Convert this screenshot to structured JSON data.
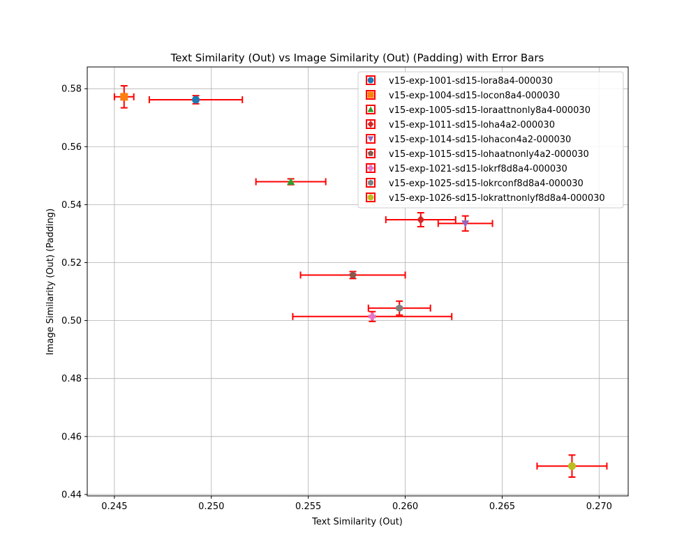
{
  "chart_data": {
    "type": "scatter",
    "title": "Text Similarity (Out) vs Image Similarity (Out) (Padding) with Error Bars",
    "xlabel": "Text Similarity (Out)",
    "ylabel": "Image Similarity (Out) (Padding)",
    "xlim": [
      0.2436,
      0.2715
    ],
    "ylim": [
      0.4395,
      0.5875
    ],
    "x_ticks": [
      "0.245",
      "0.250",
      "0.255",
      "0.260",
      "0.265",
      "0.270"
    ],
    "y_ticks": [
      "0.44",
      "0.46",
      "0.48",
      "0.50",
      "0.52",
      "0.54",
      "0.56",
      "0.58"
    ],
    "grid": true,
    "legend_position": "top-right",
    "error_bar_color": "#ff0000",
    "series": [
      {
        "name": "v15-exp-1001-sd15-lora8a4-000030",
        "marker": "circle",
        "color": "#1f77b4",
        "x": 0.2492,
        "y": 0.5762,
        "xerr": 0.0024,
        "yerr": 0.0014
      },
      {
        "name": "v15-exp-1004-sd15-locon8a4-000030",
        "marker": "square",
        "color": "#ff7f0e",
        "x": 0.2455,
        "y": 0.5772,
        "xerr": 0.0005,
        "yerr": 0.0038
      },
      {
        "name": "v15-exp-1005-sd15-loraattnonly8a4-000030",
        "marker": "triangle-up",
        "color": "#2ca02c",
        "x": 0.2541,
        "y": 0.5479,
        "xerr": 0.0018,
        "yerr": 0.001
      },
      {
        "name": "v15-exp-1011-sd15-loha4a2-000030",
        "marker": "diamond",
        "color": "#d62728",
        "x": 0.2608,
        "y": 0.5348,
        "xerr": 0.0018,
        "yerr": 0.0024
      },
      {
        "name": "v15-exp-1014-sd15-lohacon4a2-000030",
        "marker": "triangle-down",
        "color": "#9467bd",
        "x": 0.2631,
        "y": 0.5335,
        "xerr": 0.0014,
        "yerr": 0.0026
      },
      {
        "name": "v15-exp-1015-sd15-lohaatnonly4a2-000030",
        "marker": "pentagon",
        "color": "#8c564b",
        "x": 0.2573,
        "y": 0.5157,
        "xerr": 0.0027,
        "yerr": 0.0012
      },
      {
        "name": "v15-exp-1021-sd15-lokrf8d8a4-000030",
        "marker": "plus",
        "color": "#e377c2",
        "x": 0.2583,
        "y": 0.5014,
        "xerr": 0.0041,
        "yerr": 0.0017
      },
      {
        "name": "v15-exp-1025-sd15-lokrconf8d8a4-000030",
        "marker": "hexagon",
        "color": "#7f7f7f",
        "x": 0.2597,
        "y": 0.5043,
        "xerr": 0.0016,
        "yerr": 0.0024
      },
      {
        "name": "v15-exp-1026-sd15-lokrattnonlyf8d8a4-000030",
        "marker": "circle",
        "color": "#bcbd22",
        "x": 0.2686,
        "y": 0.4498,
        "xerr": 0.0018,
        "yerr": 0.0038
      }
    ]
  }
}
